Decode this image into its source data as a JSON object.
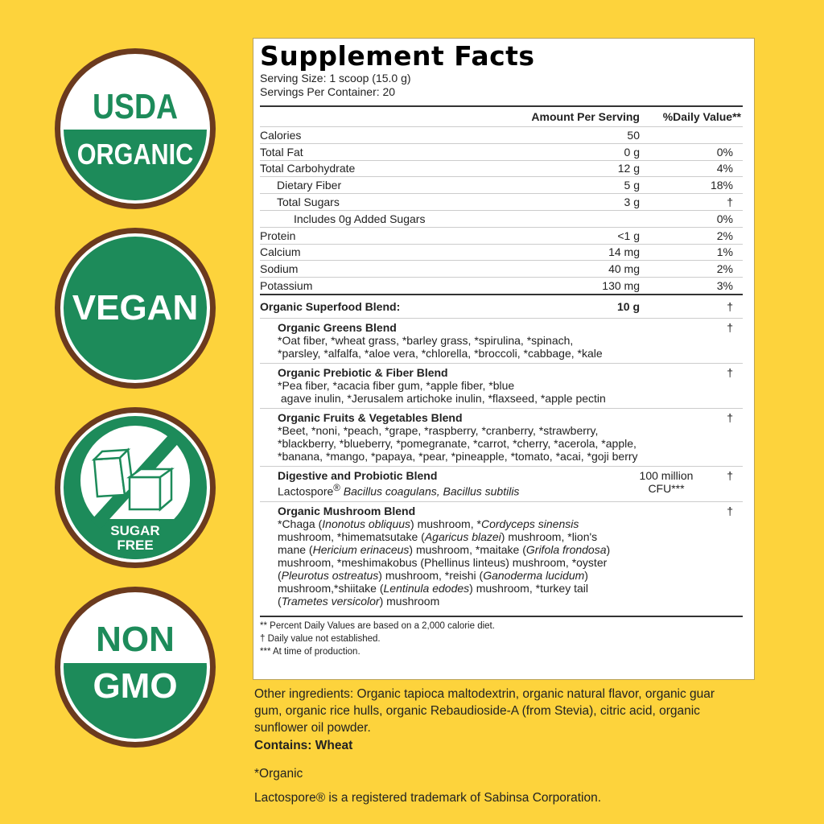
{
  "colors": {
    "background": "#FDD33C",
    "badge_green": "#1D8B5A",
    "badge_brown": "#6B3A1E"
  },
  "badges": [
    {
      "name": "usda-organic",
      "line1": "USDA",
      "line2": "ORGANIC"
    },
    {
      "name": "vegan",
      "line1": "VEGAN"
    },
    {
      "name": "sugar-free",
      "line1": "SUGAR",
      "line2": "FREE",
      "icon": "sugar-cubes-crossed-icon"
    },
    {
      "name": "non-gmo",
      "line1": "NON",
      "line2": "GMO"
    }
  ],
  "facts": {
    "title": "Supplement Facts",
    "serving_size": "Serving Size: 1 scoop (15.0 g)",
    "servings_per_container": "Servings Per Container: 20",
    "header": {
      "amount": "Amount Per Serving",
      "dv": "%Daily Value**"
    },
    "nutrients": [
      {
        "label": "Calories",
        "amount": "50",
        "dv": "",
        "indent": 0
      },
      {
        "label": "Total Fat",
        "amount": "0 g",
        "dv": "0%",
        "indent": 0
      },
      {
        "label": "Total Carbohydrate",
        "amount": "12 g",
        "dv": "4%",
        "indent": 0
      },
      {
        "label": "Dietary Fiber",
        "amount": "5 g",
        "dv": "18%",
        "indent": 1
      },
      {
        "label": "Total Sugars",
        "amount": "3 g",
        "dv": "†",
        "indent": 1
      },
      {
        "label": "Includes 0g Added Sugars",
        "amount": "",
        "dv": "0%",
        "indent": 2
      },
      {
        "label": "Protein",
        "amount": "<1 g",
        "dv": "2%",
        "indent": 0
      },
      {
        "label": "Calcium",
        "amount": "14 mg",
        "dv": "1%",
        "indent": 0
      },
      {
        "label": "Sodium",
        "amount": "40 mg",
        "dv": "2%",
        "indent": 0
      },
      {
        "label": "Potassium",
        "amount": "130 mg",
        "dv": "3%",
        "indent": 0
      }
    ],
    "superfood": {
      "label": "Organic Superfood Blend:",
      "amount": "10 g",
      "dv": "†"
    },
    "blends": [
      {
        "name": "Organic Greens Blend",
        "dv": "†",
        "text": "*Oat fiber, *wheat grass, *barley grass, *spirulina, *spinach,<br>*parsley, *alfalfa, *aloe vera, *chlorella, *broccoli, *cabbage, *kale"
      },
      {
        "name": "Organic Prebiotic & Fiber Blend",
        "dv": "†",
        "text": "*Pea fiber, *acacia fiber gum, *apple fiber, *blue<br>&nbsp;agave inulin, *Jerusalem artichoke inulin, *flaxseed, *apple pectin"
      },
      {
        "name": "Organic Fruits & Vegetables Blend",
        "dv": "†",
        "text": "*Beet, *noni, *peach, *grape, *raspberry, *cranberry, *strawberry,<br>*blackberry, *blueberry, *pomegranate, *carrot, *cherry, *acerola, *apple,<br>*banana, *mango, *papaya, *pear, *pineapple, *tomato, *acai, *goji berry"
      },
      {
        "name": "Digestive and Probiotic Blend",
        "dv": "†",
        "amount": "100 million<br>CFU***",
        "text": "Lactospore<sup>®</sup> <i>Bacillus coagulans, Bacillus subtilis</i>"
      },
      {
        "name": "Organic Mushroom Blend",
        "dv": "†",
        "text": "*Chaga (<i>Inonotus obliquus</i>) mushroom, *<i>Cordyceps sinensis</i><br>mushroom, *himematsutake (<i>Agaricus blazei</i>) mushroom, *lion's<br>mane (<i>Hericium erinaceus</i>) mushroom, *maitake (<i>Grifola frondosa</i>)<br>mushroom, *meshimakobus (Phellinus linteus) mushroom, *oyster<br>(<i>Pleurotus ostreatus</i>) mushroom, *reishi (<i>Ganoderma lucidum</i>)<br>mushroom,*shiitake (<i>Lentinula edodes</i>) mushroom, *turkey tail<br>(<i>Trametes versicolor</i>) mushroom"
      }
    ],
    "footnotes": [
      "** Percent Daily Values are based on a 2,000 calorie diet.",
      "† Daily value not established.",
      "*** At time of production."
    ]
  },
  "other_ingredients": "Other ingredients: Organic tapioca maltodextrin, organic natural flavor, organic guar gum, organic rice hulls, organic Rebaudioside-A (from Stevia), citric acid, organic sunflower oil powder.",
  "contains": "Contains: Wheat",
  "organic_note": "*Organic",
  "trademark": "Lactospore® is a registered trademark of Sabinsa Corporation."
}
